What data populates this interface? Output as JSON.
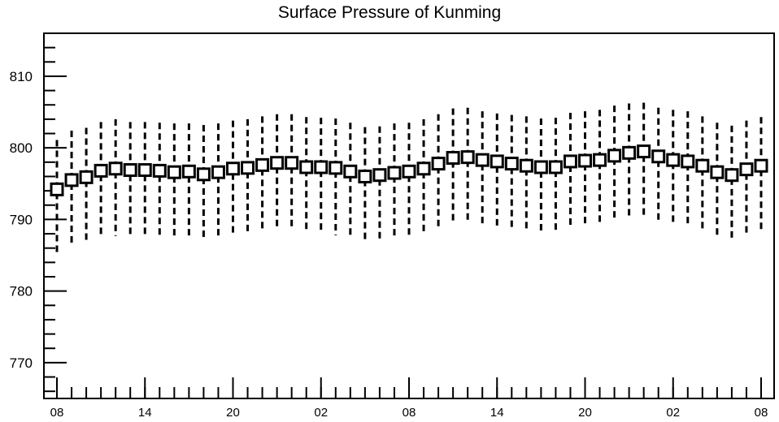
{
  "chart_data": {
    "type": "box",
    "title": "Surface Pressure of Kunming",
    "xlabel": "",
    "ylabel": "",
    "ylim": [
      765,
      816
    ],
    "y_ticks": [
      770,
      780,
      790,
      800,
      810
    ],
    "x_tick_labels": [
      "08",
      "14",
      "20",
      "02",
      "08",
      "14",
      "20",
      "02",
      "08"
    ],
    "x_tick_index": [
      0,
      6,
      12,
      18,
      24,
      30,
      36,
      42,
      48
    ],
    "grid": false,
    "series": [
      {
        "mean": [
          794.2,
          795.5,
          795.9,
          796.8,
          797.1,
          796.9,
          796.9,
          796.8,
          796.6,
          796.7,
          796.3,
          796.6,
          797.1,
          797.2,
          797.6,
          797.9,
          797.9,
          797.3,
          797.3,
          797.2,
          796.7,
          796.0,
          796.2,
          796.5,
          796.7,
          797.1,
          797.8,
          798.6,
          798.7,
          798.3,
          798.1,
          797.8,
          797.5,
          797.3,
          797.3,
          798.1,
          798.2,
          798.3,
          798.9,
          799.3,
          799.5,
          798.8,
          798.3,
          798.1,
          797.5,
          796.6,
          796.2,
          797.0,
          797.5
        ],
        "upper": [
          801.1,
          802.4,
          802.8,
          803.6,
          804.0,
          803.6,
          803.6,
          803.5,
          803.4,
          803.4,
          803.2,
          803.4,
          803.8,
          804.0,
          804.4,
          804.7,
          804.7,
          804.3,
          804.2,
          804.1,
          803.5,
          802.9,
          803.0,
          803.4,
          803.5,
          804.0,
          804.7,
          805.5,
          805.6,
          805.1,
          804.8,
          804.6,
          804.4,
          804.1,
          804.2,
          804.9,
          805.1,
          805.3,
          805.9,
          806.2,
          806.3,
          805.6,
          805.3,
          805.1,
          804.4,
          803.5,
          803.1,
          803.8,
          804.3
        ],
        "lower": [
          785.1,
          786.4,
          786.8,
          787.4,
          787.7,
          787.6,
          787.5,
          787.4,
          787.3,
          787.4,
          787.1,
          787.4,
          787.9,
          788.0,
          788.4,
          788.7,
          788.7,
          788.1,
          788.0,
          787.8,
          787.5,
          786.8,
          786.9,
          787.4,
          787.6,
          787.8,
          788.6,
          789.3,
          789.4,
          789.1,
          788.9,
          788.7,
          788.2,
          788.0,
          788.1,
          788.9,
          789.0,
          789.2,
          789.7,
          790.0,
          790.2,
          789.8,
          789.2,
          789.0,
          788.4,
          787.4,
          787.1,
          787.8,
          788.2
        ]
      }
    ]
  }
}
